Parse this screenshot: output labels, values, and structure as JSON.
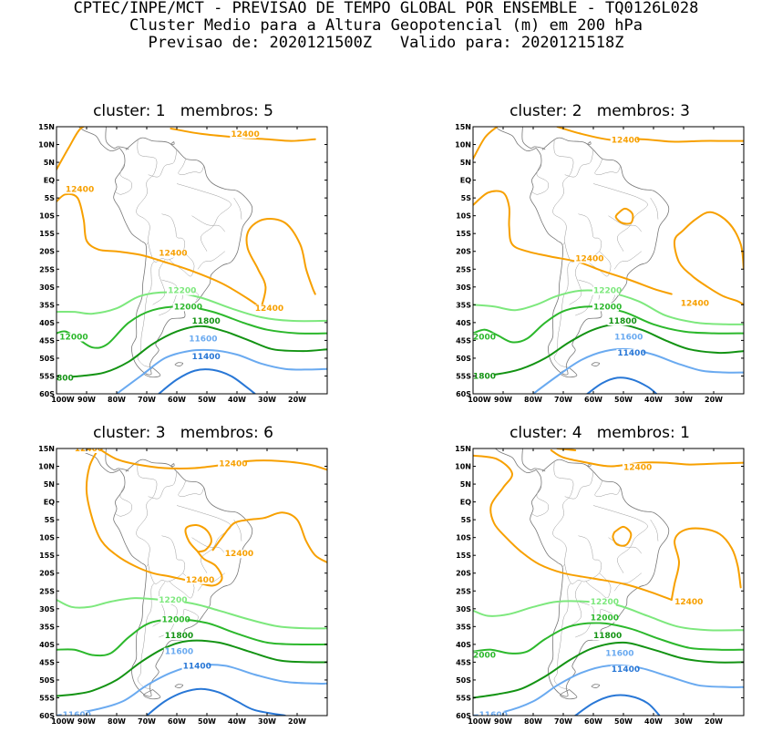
{
  "header": {
    "line1": "CPTEC/INPE/MCT - PREVISAO DE TEMPO GLOBAL POR ENSEMBLE - TQ0126L028",
    "line2": "Cluster Medio para a Altura Geopotencial (m) em 200 hPa",
    "line3": "Previsao de: 2020121500Z   Valido para: 2020121518Z"
  },
  "axes": {
    "lat_labels": [
      "15N",
      "10N",
      "5N",
      "EQ",
      "5S",
      "10S",
      "15S",
      "20S",
      "25S",
      "30S",
      "35S",
      "40S",
      "45S",
      "50S",
      "55S",
      "60S"
    ],
    "lon_labels": [
      "100W",
      "90W",
      "80W",
      "70W",
      "60W",
      "50W",
      "40W",
      "30W",
      "20W"
    ]
  },
  "colors": {
    "12400": "#f7a000",
    "12200": "#7de87d",
    "12000": "#2cb82c",
    "11800": "#139313",
    "11600": "#6aaaf0",
    "11400": "#2877d6",
    "coast": "#777777"
  },
  "panels": [
    {
      "title": "cluster: 1   membros: 5",
      "labels": [
        {
          "level": "12400",
          "text": "12400"
        },
        {
          "level": "12400",
          "text": "12400"
        },
        {
          "level": "12400",
          "text": "12400"
        },
        {
          "level": "12400",
          "text": "12400"
        },
        {
          "level": "12200",
          "text": "12200"
        },
        {
          "level": "12000",
          "text": "12000"
        },
        {
          "level": "12000",
          "text": "12000"
        },
        {
          "level": "11800",
          "text": "11800"
        },
        {
          "level": "11800",
          "text": "800"
        },
        {
          "level": "11600",
          "text": "11600"
        },
        {
          "level": "11400",
          "text": "11400"
        }
      ]
    },
    {
      "title": "cluster: 2   membros: 3",
      "labels": [
        {
          "level": "12400",
          "text": "12400"
        },
        {
          "level": "12400",
          "text": "12400"
        },
        {
          "level": "12400",
          "text": "12400"
        },
        {
          "level": "12200",
          "text": "12200"
        },
        {
          "level": "12000",
          "text": "12000"
        },
        {
          "level": "12000",
          "text": "2000"
        },
        {
          "level": "11800",
          "text": "11800"
        },
        {
          "level": "11800",
          "text": "1800"
        },
        {
          "level": "11600",
          "text": "11600"
        },
        {
          "level": "11400",
          "text": "11400"
        }
      ]
    },
    {
      "title": "cluster: 3   membros: 6",
      "labels": [
        {
          "level": "12400",
          "text": "12400"
        },
        {
          "level": "12400",
          "text": "12400"
        },
        {
          "level": "12400",
          "text": "12400"
        },
        {
          "level": "12400",
          "text": "12400"
        },
        {
          "level": "12200",
          "text": "12200"
        },
        {
          "level": "12000",
          "text": "12000"
        },
        {
          "level": "11800",
          "text": "11800"
        },
        {
          "level": "11600",
          "text": "11600"
        },
        {
          "level": "11600",
          "text": "11600"
        },
        {
          "level": "11400",
          "text": "11400"
        }
      ]
    },
    {
      "title": "cluster: 4   membros: 1",
      "labels": [
        {
          "level": "12400",
          "text": "12400"
        },
        {
          "level": "12400",
          "text": "12400"
        },
        {
          "level": "12200",
          "text": "12200"
        },
        {
          "level": "12000",
          "text": "12000"
        },
        {
          "level": "12000",
          "text": "2000"
        },
        {
          "level": "11800",
          "text": "11800"
        },
        {
          "level": "11600",
          "text": "11600"
        },
        {
          "level": "11600",
          "text": "11600"
        },
        {
          "level": "11400",
          "text": "11400"
        }
      ]
    }
  ]
}
